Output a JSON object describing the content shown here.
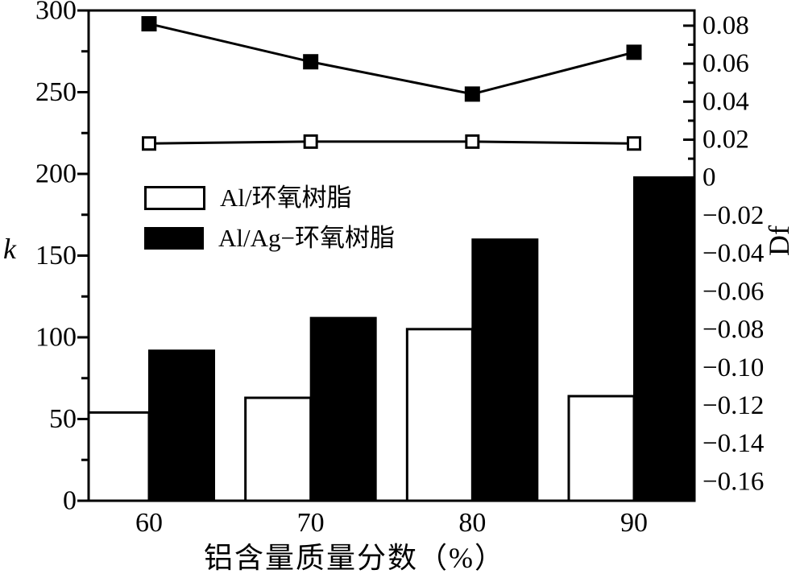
{
  "figure": {
    "background": "#ffffff",
    "ink": "#000000"
  },
  "chart_data": {
    "type": "combo-bar-line",
    "categories": [
      "60",
      "70",
      "80",
      "90"
    ],
    "xlabel": "铝含量质量分数（%）",
    "ylabel_left": "k",
    "ylabel_right": "Df",
    "ylim_left": [
      0,
      300
    ],
    "yticks_left": [
      0,
      50,
      100,
      150,
      200,
      250,
      300
    ],
    "yticks_left_minor_step": 25,
    "ylim_right": [
      -0.17,
      0.088
    ],
    "yticks_right": [
      {
        "label": "0.08",
        "value": 0.08
      },
      {
        "label": "0.06",
        "value": 0.06
      },
      {
        "label": "0.04",
        "value": 0.04
      },
      {
        "label": "0.02",
        "value": 0.02
      },
      {
        "label": "0",
        "value": 0
      },
      {
        "label": "−0.02",
        "value": -0.02
      },
      {
        "label": "−0.04",
        "value": -0.04
      },
      {
        "label": "−0.06",
        "value": -0.06
      },
      {
        "label": "−0.08",
        "value": -0.08
      },
      {
        "label": "−0.10",
        "value": -0.1
      },
      {
        "label": "−0.12",
        "value": -0.12
      },
      {
        "label": "−0.14",
        "value": -0.14
      },
      {
        "label": "−0.16",
        "value": -0.16
      }
    ],
    "yticks_right_minor": [
      0.07,
      0.05,
      0.03,
      0.01,
      -0.01,
      -0.03,
      -0.05,
      -0.07,
      -0.09,
      -0.11,
      -0.13,
      -0.15
    ],
    "series_bars": [
      {
        "name": "Al/环氧树脂",
        "fill": "#ffffff",
        "axis": "left",
        "values": [
          54,
          63,
          105,
          64
        ]
      },
      {
        "name": "Al/Ag−环氧树脂",
        "fill": "#000000",
        "axis": "left",
        "values": [
          92,
          112,
          160,
          198
        ]
      }
    ],
    "series_lines": [
      {
        "name": "Al/环氧树脂",
        "marker": "open-square",
        "axis": "right",
        "values": [
          0.018,
          0.019,
          0.019,
          0.018
        ]
      },
      {
        "name": "Al/Ag−环氧树脂",
        "marker": "filled-square",
        "axis": "right",
        "values": [
          0.081,
          0.061,
          0.044,
          0.066
        ]
      }
    ],
    "legend_position": "middle-left",
    "grid": false
  }
}
